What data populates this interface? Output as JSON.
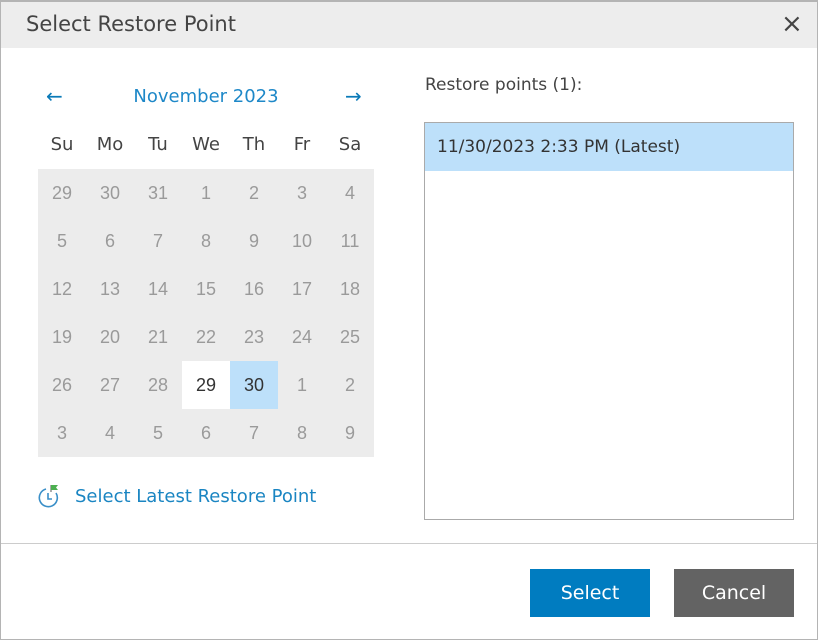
{
  "dialog": {
    "title": "Select Restore Point",
    "close_icon": "×"
  },
  "calendar": {
    "prev": "←",
    "next": "→",
    "month_label": "November 2023",
    "weekdays": [
      "Su",
      "Mo",
      "Tu",
      "We",
      "Th",
      "Fr",
      "Sa"
    ],
    "days": [
      29,
      30,
      31,
      1,
      2,
      3,
      4,
      5,
      6,
      7,
      8,
      9,
      10,
      11,
      12,
      13,
      14,
      15,
      16,
      17,
      18,
      19,
      20,
      21,
      22,
      23,
      24,
      25,
      26,
      27,
      28,
      29,
      30,
      1,
      2,
      3,
      4,
      5,
      6,
      7,
      8,
      9
    ],
    "available_index": 31,
    "selected_index": 32
  },
  "latest_link": {
    "label": "Select Latest Restore Point"
  },
  "restore_points": {
    "label": "Restore points (1):",
    "items": [
      "11/30/2023 2:33 PM (Latest)"
    ]
  },
  "buttons": {
    "select": "Select",
    "cancel": "Cancel"
  },
  "colors": {
    "accent": "#007cc0",
    "selected": "#bde0fa",
    "cancel": "#636363"
  }
}
